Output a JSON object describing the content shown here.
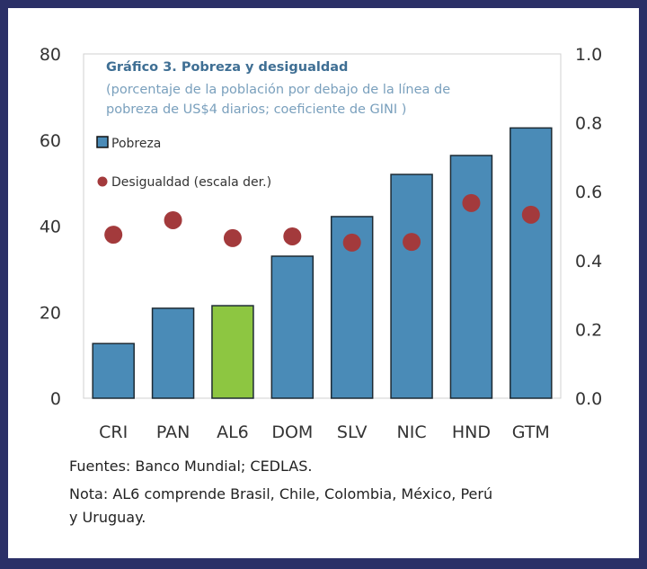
{
  "chart_data": {
    "type": "bar",
    "title": "Gráfico 3. Pobreza y desigualdad",
    "subtitle_lines": [
      "(porcentaje de la población por debajo de la línea de",
      "pobreza de US$4 diarios; coeficiente de GINI )"
    ],
    "categories": [
      "CRI",
      "PAN",
      "AL6",
      "DOM",
      "SLV",
      "NIC",
      "HND",
      "GTM"
    ],
    "series": [
      {
        "name": "Pobreza",
        "type": "bar",
        "axis": "left",
        "values": [
          12.7,
          20.9,
          21.5,
          33.0,
          42.2,
          52.0,
          56.4,
          62.8
        ]
      },
      {
        "name": "Desigualdad (escala der.)",
        "type": "scatter",
        "axis": "right",
        "values": [
          0.475,
          0.517,
          0.465,
          0.47,
          0.452,
          0.454,
          0.567,
          0.533
        ]
      }
    ],
    "highlight_category": "AL6",
    "ylim": [
      0,
      80
    ],
    "yticks": [
      "0",
      "20",
      "40",
      "60",
      "80"
    ],
    "y2lim": [
      0,
      1.0
    ],
    "y2ticks": [
      "0.0",
      "0.2",
      "0.4",
      "0.6",
      "0.8",
      "1.0"
    ],
    "legend_position": "top-left",
    "colors": {
      "bar": "#4a8bb7",
      "highlight": "#8dc641",
      "dot": "#a33a3c",
      "title": "#3f6f94",
      "subtitle": "#7aa0bd"
    }
  },
  "notes": {
    "sources": "Fuentes:  Banco Mundial; CEDLAS.",
    "note_line1": "Nota: AL6 comprende Brasil, Chile, Colombia, México, Perú",
    "note_line2": "y Uruguay."
  }
}
